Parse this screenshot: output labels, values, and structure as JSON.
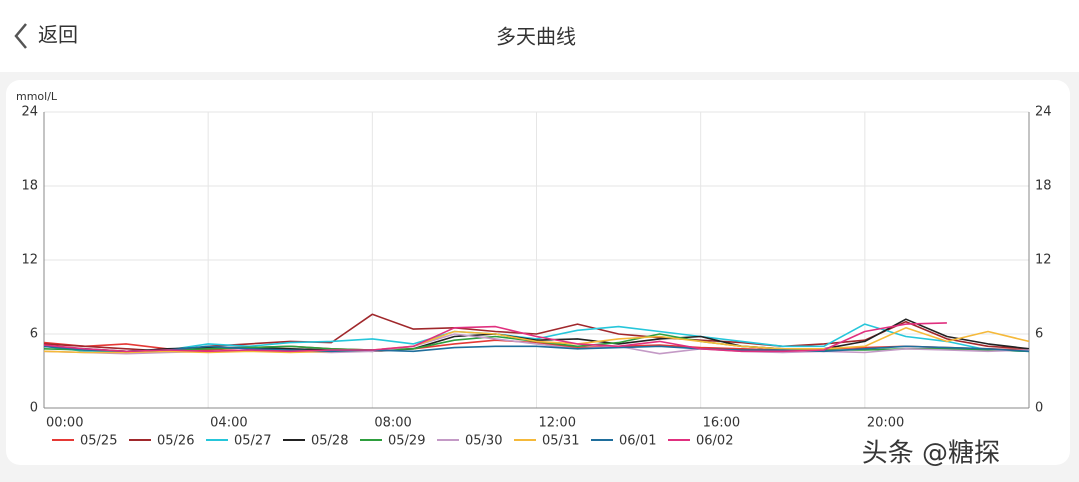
{
  "header": {
    "back": "返回",
    "title": "多天曲线"
  },
  "watermark": "头条 @糖探",
  "chart_data": {
    "type": "line",
    "y_unit": "mmol/L",
    "x": [
      0,
      1,
      2,
      3,
      4,
      5,
      6,
      7,
      8,
      9,
      10,
      11,
      12,
      13,
      14,
      15,
      16,
      17,
      18,
      19,
      20,
      21,
      22,
      23,
      24
    ],
    "xlim": [
      0,
      24
    ],
    "xticks": [
      {
        "value": 0,
        "label": "00:00"
      },
      {
        "value": 4,
        "label": "04:00"
      },
      {
        "value": 8,
        "label": "08:00"
      },
      {
        "value": 12,
        "label": "12:00"
      },
      {
        "value": 16,
        "label": "16:00"
      },
      {
        "value": 20,
        "label": "20:00"
      }
    ],
    "ylim": [
      0,
      24
    ],
    "yticks": [
      0,
      6,
      12,
      18,
      24
    ],
    "grid": true,
    "series": [
      {
        "name": "05/25",
        "color": "#e53935",
        "values": [
          5.3,
          5.0,
          5.2,
          4.8,
          4.7,
          4.9,
          5.0,
          4.8,
          4.7,
          4.8,
          5.2,
          5.5,
          5.3,
          4.9,
          5.0,
          5.1,
          4.9,
          4.8,
          4.7,
          4.8,
          4.9,
          5.0,
          4.9,
          4.8,
          4.7
        ]
      },
      {
        "name": "05/26",
        "color": "#a0282c",
        "values": [
          5.2,
          5.0,
          4.8,
          4.6,
          5.0,
          5.2,
          5.4,
          5.3,
          7.6,
          6.4,
          6.5,
          6.2,
          6.0,
          6.8,
          6.0,
          5.7,
          5.5,
          5.3,
          5.0,
          5.2,
          5.5,
          7.0,
          5.6,
          5.0,
          4.8
        ]
      },
      {
        "name": "05/27",
        "color": "#26c6da",
        "values": [
          5.0,
          4.6,
          4.5,
          4.7,
          5.2,
          5.0,
          5.3,
          5.4,
          5.6,
          5.2,
          6.2,
          6.0,
          5.6,
          6.3,
          6.6,
          6.2,
          5.8,
          5.4,
          5.0,
          5.0,
          6.8,
          5.8,
          5.4,
          4.7,
          4.6
        ]
      },
      {
        "name": "05/28",
        "color": "#222222",
        "values": [
          5.0,
          4.8,
          4.6,
          4.8,
          4.9,
          4.9,
          4.8,
          4.7,
          4.6,
          4.8,
          5.8,
          6.0,
          5.5,
          5.6,
          5.2,
          5.6,
          5.8,
          5.0,
          4.8,
          4.8,
          5.4,
          7.2,
          5.8,
          5.2,
          4.8
        ]
      },
      {
        "name": "05/29",
        "color": "#2e9e3e",
        "values": [
          4.8,
          4.7,
          4.6,
          4.7,
          4.8,
          4.9,
          5.0,
          4.8,
          4.7,
          4.8,
          5.5,
          5.8,
          5.4,
          5.0,
          5.3,
          6.0,
          5.4,
          5.0,
          4.8,
          4.7,
          4.7,
          4.8,
          4.8,
          4.7,
          4.6
        ]
      },
      {
        "name": "05/30",
        "color": "#c49ac6",
        "values": [
          4.6,
          4.5,
          4.4,
          4.5,
          4.6,
          4.7,
          4.6,
          4.5,
          4.6,
          5.0,
          6.0,
          5.6,
          5.2,
          4.8,
          5.0,
          4.4,
          4.8,
          4.6,
          4.5,
          4.6,
          4.5,
          4.8,
          4.7,
          4.6,
          4.7
        ]
      },
      {
        "name": "05/31",
        "color": "#f5b93a",
        "values": [
          4.6,
          4.5,
          4.5,
          4.6,
          4.5,
          4.6,
          4.5,
          4.6,
          4.7,
          5.0,
          6.2,
          6.0,
          5.4,
          5.2,
          5.6,
          5.8,
          5.4,
          5.0,
          4.8,
          4.8,
          5.0,
          6.5,
          5.4,
          6.2,
          5.4
        ]
      },
      {
        "name": "06/01",
        "color": "#1f6e9c",
        "values": [
          5.0,
          4.7,
          4.6,
          4.7,
          5.0,
          4.8,
          4.7,
          4.6,
          4.7,
          4.6,
          4.9,
          5.0,
          5.0,
          4.8,
          4.9,
          5.0,
          4.8,
          4.7,
          4.7,
          4.6,
          4.8,
          5.0,
          4.9,
          4.8,
          4.6
        ]
      },
      {
        "name": "06/02",
        "color": "#e0307f",
        "values": [
          5.1,
          4.8,
          4.6,
          4.7,
          4.6,
          4.7,
          4.6,
          4.7,
          4.7,
          5.0,
          6.5,
          6.6,
          5.8,
          5.2,
          5.0,
          5.4,
          4.8,
          4.6,
          4.6,
          4.7,
          6.2,
          6.8,
          6.9,
          null,
          null
        ]
      }
    ]
  }
}
